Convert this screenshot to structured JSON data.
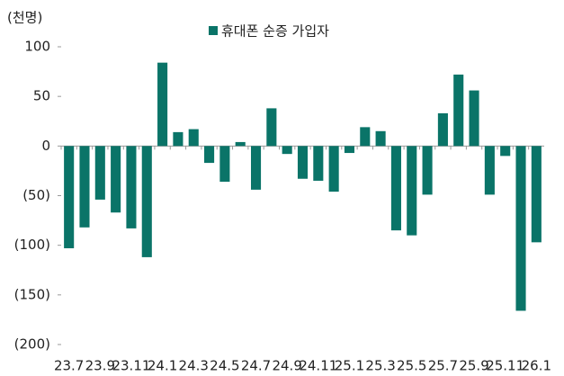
{
  "chart_data": {
    "type": "bar",
    "unit_label": "(천명)",
    "categories": [
      "23.7",
      null,
      "23.9",
      null,
      "23.11",
      null,
      "24.1",
      null,
      "24.3",
      null,
      "24.5",
      null,
      "24.7",
      null,
      "24.9",
      null,
      "24.11",
      null,
      "25.1",
      null,
      "25.3",
      null,
      "25.5",
      null,
      "25.7",
      null,
      "25.9",
      null,
      "25.11",
      null,
      "26.1"
    ],
    "series": [
      {
        "name": "휴대폰 순증 가입자",
        "color": "#0a7468",
        "values": [
          -103,
          -82,
          -54,
          -67,
          -83,
          -112,
          84,
          14,
          17,
          -17,
          -36,
          4,
          -44,
          38,
          -8,
          -33,
          -35,
          -46,
          -7,
          19,
          15,
          -85,
          -90,
          -49,
          33,
          72,
          56,
          -49,
          -10,
          -166,
          -97
        ]
      }
    ],
    "ylim": [
      -200,
      100
    ],
    "yticks": [
      {
        "value": -200,
        "label": "(200)"
      },
      {
        "value": -150,
        "label": "(150)"
      },
      {
        "value": -100,
        "label": "(100)"
      },
      {
        "value": -50,
        "label": "(50)"
      },
      0,
      50,
      100
    ],
    "legend": "top"
  }
}
